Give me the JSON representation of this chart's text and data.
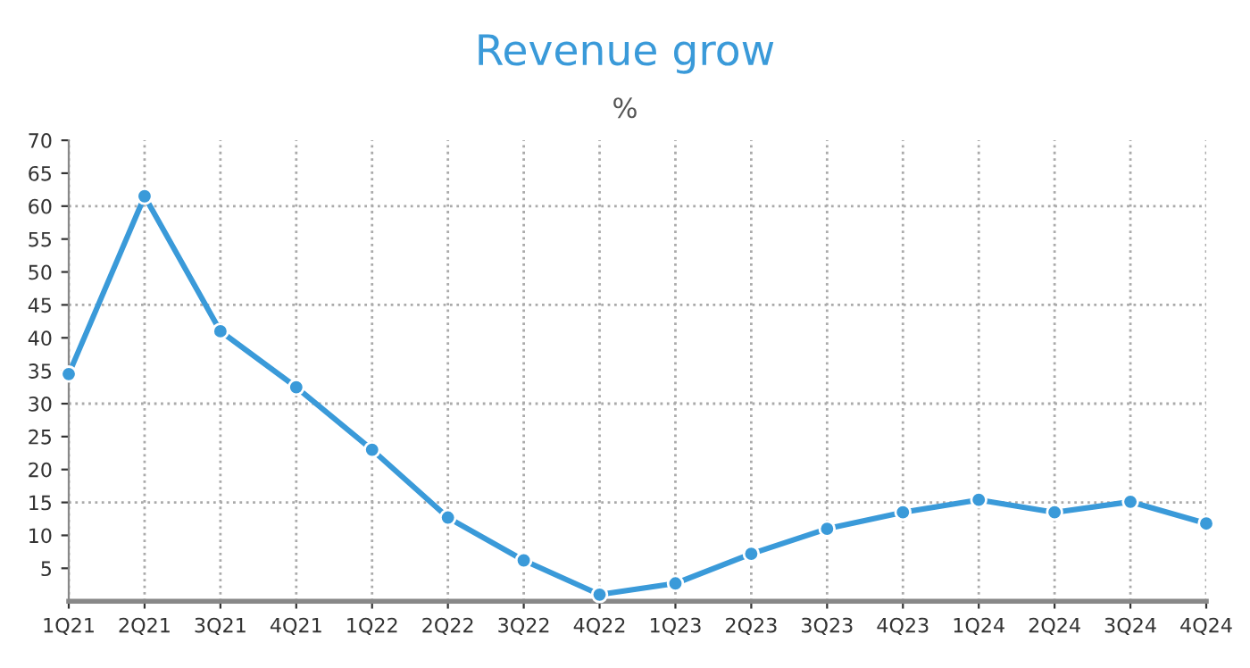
{
  "chart_data": {
    "type": "line",
    "title": "Revenue grow",
    "subtitle": "%",
    "categories": [
      "1Q21",
      "2Q21",
      "3Q21",
      "4Q21",
      "1Q22",
      "2Q22",
      "3Q22",
      "4Q22",
      "1Q23",
      "2Q23",
      "3Q23",
      "4Q23",
      "1Q24",
      "2Q24",
      "3Q24",
      "4Q24"
    ],
    "series": [
      {
        "color": "#3a9ad9",
        "values": [
          34.5,
          61.5,
          41,
          32.5,
          23,
          12.7,
          6.2,
          1,
          2.7,
          7.2,
          11,
          13.5,
          15.4,
          13.5,
          15.1,
          11.8
        ]
      }
    ],
    "ylim": [
      0,
      70
    ],
    "yticks": [
      5,
      10,
      15,
      20,
      25,
      30,
      35,
      40,
      45,
      50,
      55,
      60,
      65,
      70
    ],
    "grid": "x",
    "marker": "circle",
    "line_style": "solid",
    "ref_lines": [
      {
        "axis": "y",
        "value": 15,
        "color": "#aaaaaa",
        "line_style": "dotted"
      },
      {
        "axis": "y",
        "value": 30,
        "color": "#aaaaaa",
        "line_style": "dotted"
      },
      {
        "axis": "y",
        "value": 45,
        "color": "#aaaaaa",
        "line_style": "dotted"
      },
      {
        "axis": "y",
        "value": 60,
        "color": "#aaaaaa",
        "line_style": "dotted"
      }
    ]
  }
}
